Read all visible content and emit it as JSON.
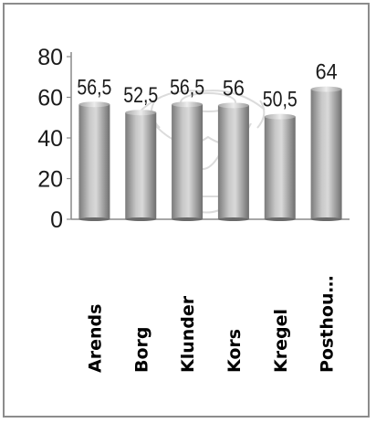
{
  "chart_data": {
    "type": "bar",
    "categories": [
      "Arends",
      "Borg",
      "Klunder",
      "Kors",
      "Kregel",
      "Posthou…"
    ],
    "values": [
      56.5,
      52.5,
      56.5,
      56,
      50.5,
      64
    ],
    "data_labels": [
      "56,5",
      "52,5",
      "56,5",
      "56",
      "50,5",
      "64"
    ],
    "y_ticks": [
      "0",
      "20",
      "40",
      "60",
      "80"
    ],
    "ylim": [
      0,
      80
    ],
    "grid": false,
    "legend": "none",
    "colors": {
      "bar_light": "#e8e8e8",
      "bar_mid": "#b3b3b3",
      "bar_dark": "#6e6e6e",
      "axis": "#8a8a8a",
      "frame": "#8c8c8c"
    }
  }
}
